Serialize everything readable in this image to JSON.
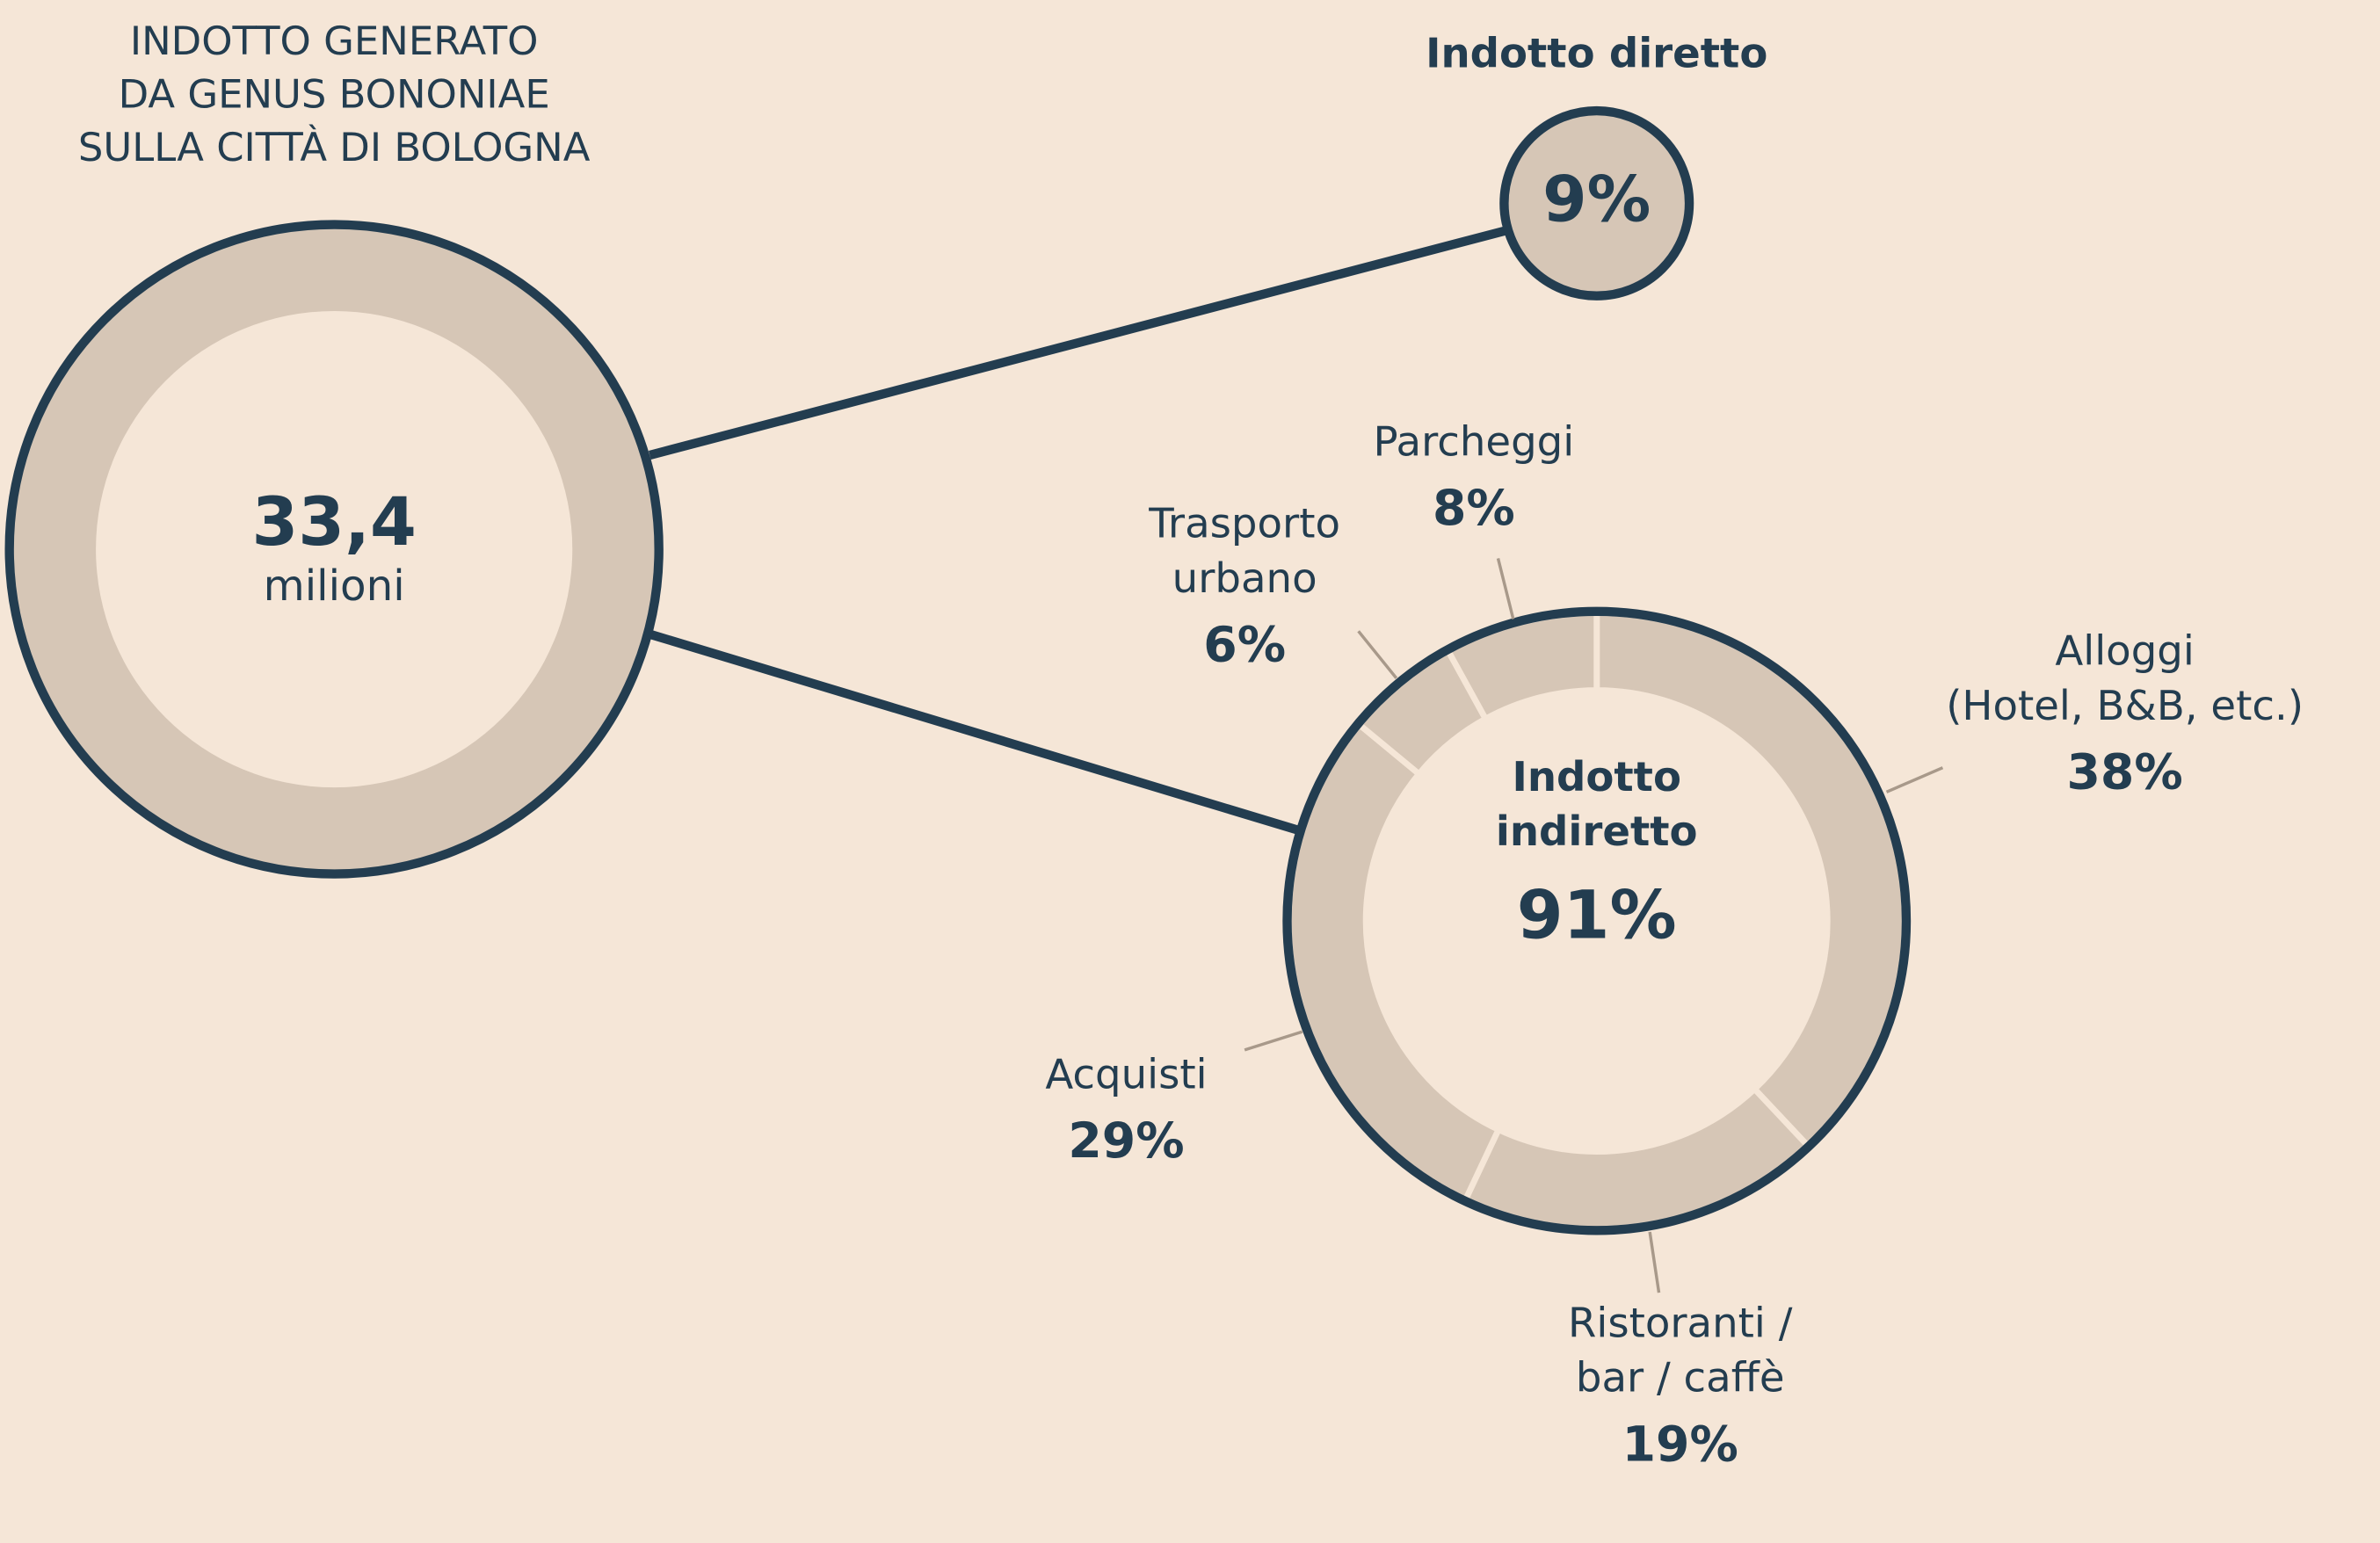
{
  "chart_data": {
    "type": "donut",
    "title_lines": [
      "INDOTTO GENERATO",
      "DA GENUS BONONIAE",
      "SULLA CITTÀ DI BOLOGNA"
    ],
    "total": {
      "value": 33.4,
      "label": "33,4"
    },
    "total_unit": "milioni",
    "direct": {
      "name": "Indotto diretto",
      "value": 9,
      "value_label": "9%"
    },
    "indirect": {
      "name_lines": [
        "Indotto",
        "indiretto"
      ],
      "value": 91,
      "value_label": "91%"
    },
    "categories": [
      [
        "Alloggi",
        "(Hotel, B&B, etc.)"
      ],
      [
        "Ristoranti /",
        "bar / caffè"
      ],
      [
        "Acquisti"
      ],
      [
        "Trasporto",
        "urbano"
      ],
      [
        "Parcheggi"
      ]
    ],
    "values": [
      38,
      19,
      29,
      6,
      8
    ],
    "value_labels": [
      "38%",
      "19%",
      "29%",
      "6%",
      "8%"
    ],
    "color": "#d6c6b6",
    "stroke_color": "#233d50",
    "background": "#f5e6d7"
  }
}
